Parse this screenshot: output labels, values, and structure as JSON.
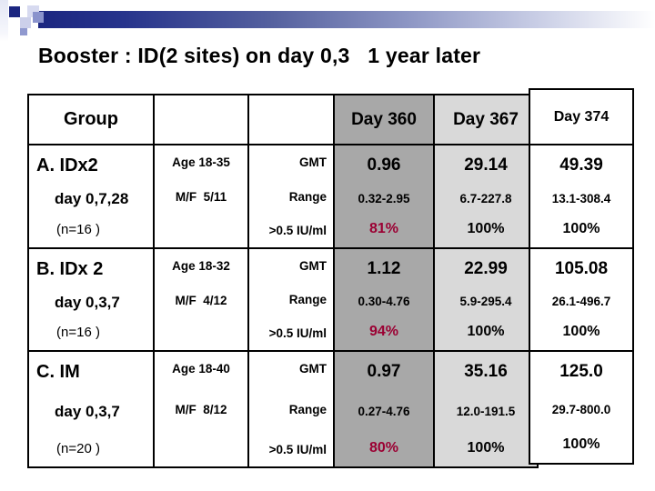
{
  "slide": {
    "title": "Booster : ID(2 sites) on day 0,3   1 year later"
  },
  "table": {
    "header": {
      "group_label": "Group",
      "day_columns": [
        "Day 360",
        "Day 367",
        "Day 374"
      ]
    },
    "measures": [
      "GMT",
      "Range",
      ">0.5 IU/ml"
    ],
    "groups": [
      {
        "label": "A. IDx2",
        "schedule": "day 0,7,28",
        "n": "(n=16 )",
        "age": "Age 18-35",
        "mf": "M/F  5/11",
        "day360": {
          "gmt": "0.96",
          "range": "0.32-2.95",
          "pct": "81%"
        },
        "day367": {
          "gmt": "29.14",
          "range": "6.7-227.8",
          "pct": "100%"
        },
        "day374": {
          "gmt": "49.39",
          "range": "13.1-308.4",
          "pct": "100%"
        }
      },
      {
        "label": "B. IDx 2",
        "schedule": "day 0,3,7",
        "n": "(n=16 )",
        "age": "Age 18-32",
        "mf": "M/F  4/12",
        "day360": {
          "gmt": "1.12",
          "range": "0.30-4.76",
          "pct": "94%"
        },
        "day367": {
          "gmt": "22.99",
          "range": "5.9-295.4",
          "pct": "100%"
        },
        "day374": {
          "gmt": "105.08",
          "range": "26.1-496.7",
          "pct": "100%"
        }
      },
      {
        "label": "C. IM",
        "schedule": "day 0,3,7",
        "n": "(n=20 )",
        "age": "Age 18-40",
        "mf": "M/F  8/12",
        "day360": {
          "gmt": "0.97",
          "range": "0.27-4.76",
          "pct": "80%"
        },
        "day367": {
          "gmt": "35.16",
          "range": "12.0-191.5",
          "pct": "100%"
        },
        "day374": {
          "gmt": "125.0",
          "range": "29.7-800.0",
          "pct": "100%"
        }
      }
    ]
  },
  "colors": {
    "accent_navy": "#1b2680",
    "accent_maroon": "#9b0033",
    "col_day360_bg": "#a8a8a8",
    "col_day367_bg": "#d9d9d9"
  }
}
